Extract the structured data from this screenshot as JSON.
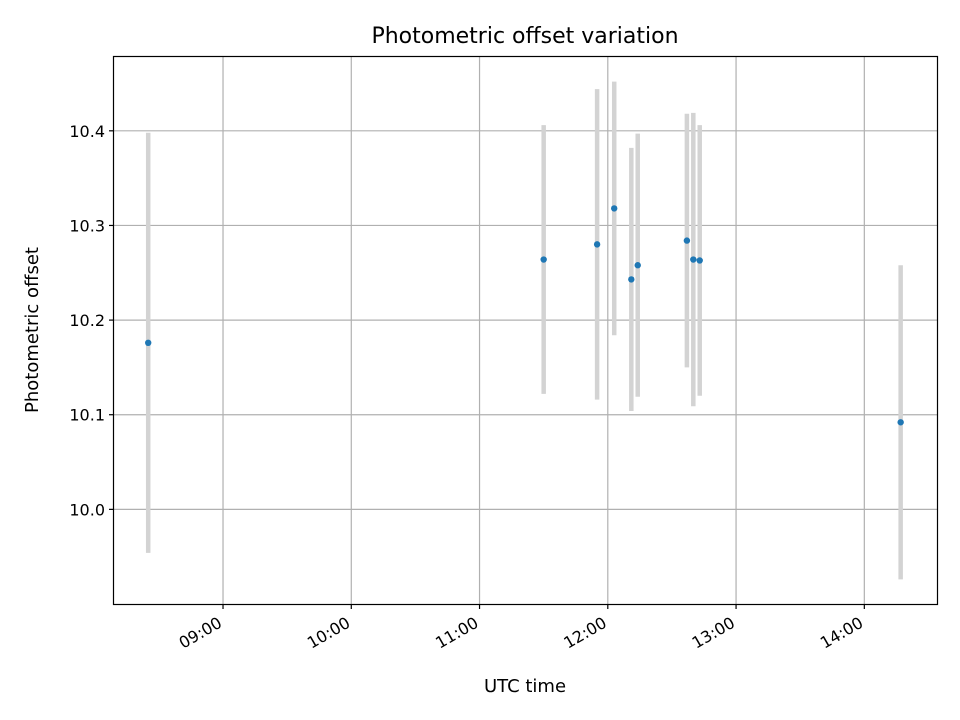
{
  "chart_data": {
    "type": "scatter",
    "title": "Photometric offset variation",
    "xlabel": "UTC time",
    "ylabel": "Photometric offset",
    "x_ticks": [
      "09:00",
      "10:00",
      "11:00",
      "12:00",
      "13:00",
      "14:00"
    ],
    "y_ticks": [
      "10.0",
      "10.1",
      "10.2",
      "10.3",
      "10.4"
    ],
    "xlim": [
      "08:09",
      "14:34"
    ],
    "ylim": [
      9.9,
      10.478
    ],
    "grid": true,
    "point_color": "#1f77b4",
    "errorbar_color": "#d3d3d3",
    "points": [
      {
        "time": "08:25",
        "y": 10.176,
        "err": 0.222
      },
      {
        "time": "11:30",
        "y": 10.264,
        "err": 0.142
      },
      {
        "time": "11:55",
        "y": 10.28,
        "err": 0.164
      },
      {
        "time": "12:03",
        "y": 10.318,
        "err": 0.134
      },
      {
        "time": "12:11",
        "y": 10.243,
        "err": 0.139
      },
      {
        "time": "12:14",
        "y": 10.258,
        "err": 0.139
      },
      {
        "time": "12:37",
        "y": 10.284,
        "err": 0.134
      },
      {
        "time": "12:40",
        "y": 10.264,
        "err": 0.155
      },
      {
        "time": "12:43",
        "y": 10.263,
        "err": 0.143
      },
      {
        "time": "14:17",
        "y": 10.092,
        "err": 0.166
      }
    ]
  }
}
